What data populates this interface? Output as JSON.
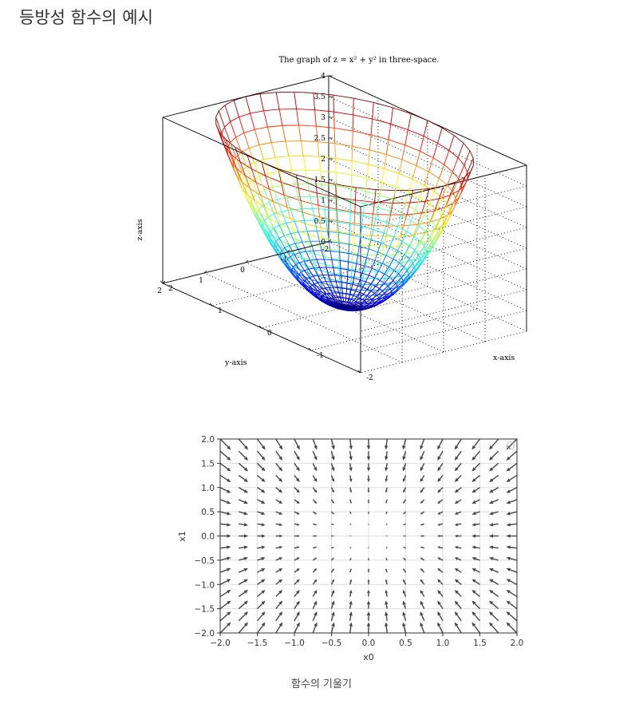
{
  "page": {
    "heading": "등방성 함수의 예시",
    "caption": "함수의 기울기"
  },
  "chart_data": [
    {
      "type": "surface",
      "title": "The graph of z = x² + y² in three-space.",
      "xlabel": "x-axis",
      "ylabel": "y-axis",
      "zlabel": "z-axis",
      "function": "z = x^2 + y^2",
      "domain": "x^2 + y^2 <= 4",
      "xlim": [
        -2,
        2
      ],
      "ylim": [
        -2,
        2
      ],
      "zlim": [
        0,
        4
      ],
      "x_ticks": [
        "-2",
        "-1",
        "0",
        "1",
        "2"
      ],
      "y_ticks": [
        "-2",
        "-1",
        "0",
        "1",
        "2"
      ],
      "z_ticks": [
        "0",
        "0.5",
        "1",
        "1.5",
        "2",
        "2.5",
        "3",
        "3.5",
        "4"
      ],
      "colormap": "jet",
      "grid": true
    },
    {
      "type": "quiver",
      "vector_field": "gradient of f(x0, x1) = x0^2 + x1^2",
      "xlabel": "x0",
      "ylabel": "x1",
      "xlim": [
        -2.0,
        2.0
      ],
      "ylim": [
        -2.0,
        2.0
      ],
      "x_ticks": [
        "−2.0",
        "−1.5",
        "−1.0",
        "−0.5",
        "0.0",
        "0.5",
        "1.0",
        "1.5",
        "2.0"
      ],
      "y_ticks": [
        "2.0",
        "1.5",
        "1.0",
        "0.5",
        "0.0",
        "−0.5",
        "−1.0",
        "−1.5",
        "−2.0"
      ],
      "grid_points_per_axis": 17,
      "grid": true,
      "arrow_color": "#444444"
    }
  ]
}
